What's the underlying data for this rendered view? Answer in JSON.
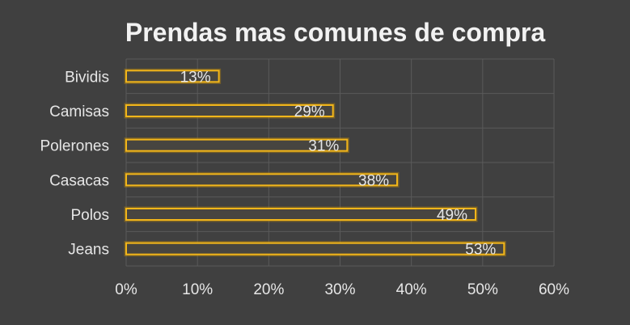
{
  "chart_data": {
    "type": "bar",
    "orientation": "horizontal",
    "title": "Prendas mas comunes de compra",
    "categories": [
      "Bividis",
      "Camisas",
      "Polerones",
      "Casacas",
      "Polos",
      "Jeans"
    ],
    "values": [
      13,
      29,
      31,
      38,
      49,
      53
    ],
    "value_labels": [
      "13%",
      "29%",
      "31%",
      "38%",
      "49%",
      "53%"
    ],
    "xlim": [
      0,
      60
    ],
    "x_ticks": [
      "0%",
      "10%",
      "20%",
      "30%",
      "40%",
      "50%",
      "60%"
    ],
    "grid": true,
    "legend": "none",
    "colors": {
      "background": "#404040",
      "bar_outline": "#f2b61a",
      "bar_fill": "#474540",
      "text": "#e6e6e6",
      "grid": "#5a5a5a"
    }
  }
}
